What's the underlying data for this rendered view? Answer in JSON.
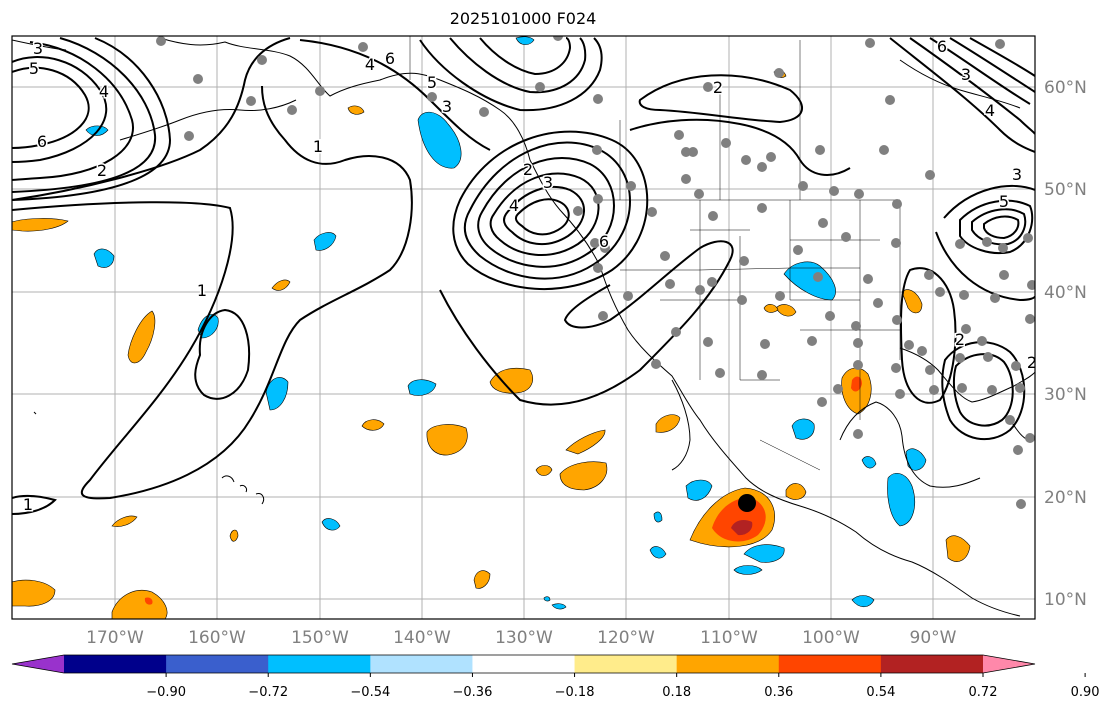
{
  "title": "2025101000 F024",
  "lon_labels": [
    "170°W",
    "160°W",
    "150°W",
    "140°W",
    "130°W",
    "120°W",
    "110°W",
    "100°W",
    "90°W"
  ],
  "lat_labels": [
    "60°N",
    "50°N",
    "40°N",
    "30°N",
    "20°N",
    "10°N"
  ],
  "colorbar": {
    "ticks": [
      "−0.90",
      "−0.72",
      "−0.54",
      "−0.36",
      "−0.18",
      "0.18",
      "0.36",
      "0.54",
      "0.72",
      "0.90"
    ],
    "colors": [
      "#9932cc",
      "#00008b",
      "#3a5fcd",
      "#00bfff",
      "#b0e2ff",
      "#ffffff",
      "#ffec8b",
      "#ffa500",
      "#ff4500",
      "#b22222",
      "#ff88aa"
    ]
  },
  "contour_labels": [
    "3",
    "5",
    "4",
    "6",
    "2",
    "6",
    "4",
    "5",
    "3",
    "2",
    "1",
    "1",
    "1",
    "2",
    "3",
    "4",
    "6",
    "2",
    "3",
    "5",
    "6",
    "3",
    "2",
    "4"
  ],
  "colors": {
    "gridline": "#b0b0b0",
    "contour": "#000000",
    "station": "#808080",
    "warm": "#ffa500",
    "hot": "#ff4500",
    "hottest": "#b22222",
    "cool": "#00bfff",
    "center_marker": "#000000"
  }
}
